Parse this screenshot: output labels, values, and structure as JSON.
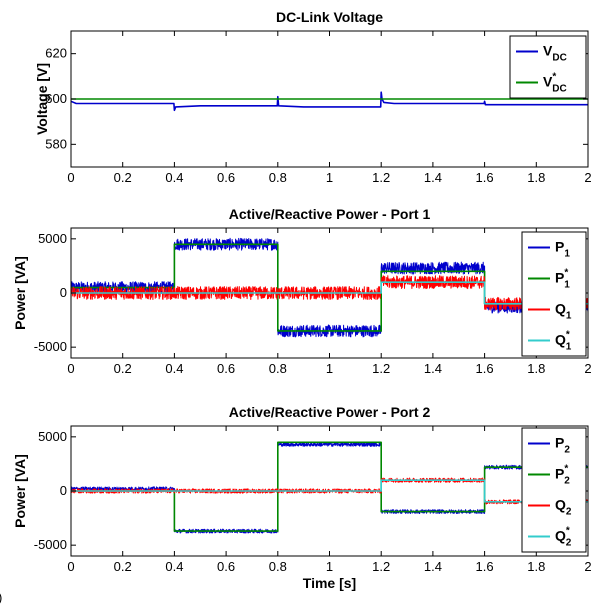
{
  "figure": {
    "panel_tag": ")"
  },
  "colors": {
    "blue": "#0000cc",
    "green": "#008800",
    "red": "#ff0000",
    "cyan": "#33cccc",
    "axis": "#000000"
  },
  "chart_data": [
    {
      "type": "line",
      "title": "DC-Link Voltage",
      "xlabel": "",
      "ylabel": "Voltage [V]",
      "xlim": [
        0,
        2
      ],
      "ylim": [
        570,
        630
      ],
      "xticks": [
        0,
        0.2,
        0.4,
        0.6,
        0.8,
        1,
        1.2,
        1.4,
        1.6,
        1.8,
        2
      ],
      "xtick_labels": [
        "0",
        "0.2",
        "0.4",
        "0.6",
        "0.8",
        "1",
        "1.2",
        "1.4",
        "1.6",
        "1.8",
        "2"
      ],
      "yticks": [
        580,
        600,
        620
      ],
      "ytick_labels": [
        "580",
        "600",
        "620"
      ],
      "grid": false,
      "legend_position": "top-right",
      "series": [
        {
          "name": "VDC",
          "legend": {
            "base": "V",
            "sub": "DC",
            "sup": ""
          },
          "color": "#0000cc",
          "x": [
            0,
            0.02,
            0.1,
            0.2,
            0.3,
            0.398,
            0.4,
            0.405,
            0.5,
            0.6,
            0.7,
            0.798,
            0.8,
            0.803,
            0.9,
            1.0,
            1.1,
            1.198,
            1.2,
            1.203,
            1.21,
            1.25,
            1.3,
            1.4,
            1.5,
            1.598,
            1.6,
            1.603,
            1.7,
            1.8,
            1.9,
            2.0
          ],
          "y": [
            599,
            598,
            598,
            598,
            598,
            598,
            595,
            596.5,
            597,
            597,
            597,
            597,
            601,
            597,
            596.5,
            596.5,
            596.5,
            596.5,
            603,
            600,
            598.5,
            598,
            598,
            598,
            598,
            598,
            599,
            597.5,
            597.5,
            597.5,
            597.5,
            597.5
          ]
        },
        {
          "name": "V*DC",
          "legend": {
            "base": "V",
            "sub": "DC",
            "sup": "*"
          },
          "color": "#008800",
          "x": [
            0,
            2
          ],
          "y": [
            600,
            600
          ]
        }
      ]
    },
    {
      "type": "line",
      "title": "Active/Reactive Power - Port 1",
      "xlabel": "",
      "ylabel": "Power [VA]",
      "xlim": [
        0,
        2
      ],
      "ylim": [
        -6000,
        6000
      ],
      "xticks": [
        0,
        0.2,
        0.4,
        0.6,
        0.8,
        1,
        1.2,
        1.4,
        1.6,
        1.8,
        2
      ],
      "xtick_labels": [
        "0",
        "0.2",
        "0.4",
        "0.6",
        "0.8",
        "1",
        "1.2",
        "1.4",
        "1.6",
        "1.8",
        "2"
      ],
      "yticks": [
        -5000,
        0,
        5000
      ],
      "ytick_labels": [
        "-5000",
        "0",
        "5000"
      ],
      "grid": false,
      "legend_position": "right",
      "series": [
        {
          "name": "P1",
          "legend": {
            "base": "P",
            "sub": "1",
            "sup": ""
          },
          "color": "#0000cc",
          "steps": [
            [
              0,
              0.4,
              500
            ],
            [
              0.4,
              0.8,
              4500
            ],
            [
              0.8,
              1.2,
              -3500
            ],
            [
              1.2,
              1.6,
              2300
            ],
            [
              1.6,
              2.0,
              -1300
            ]
          ],
          "noise": 550
        },
        {
          "name": "P*1",
          "legend": {
            "base": "P",
            "sub": "1",
            "sup": "*"
          },
          "color": "#008800",
          "steps": [
            [
              0,
              0.4,
              500
            ],
            [
              0.4,
              0.8,
              4500
            ],
            [
              0.8,
              1.2,
              -3500
            ],
            [
              1.2,
              1.6,
              2000
            ],
            [
              1.6,
              2.0,
              -1000
            ]
          ],
          "noise": 0
        },
        {
          "name": "Q1",
          "legend": {
            "base": "Q",
            "sub": "1",
            "sup": ""
          },
          "color": "#ff0000",
          "steps": [
            [
              0,
              1.2,
              0
            ],
            [
              1.2,
              1.6,
              1000
            ],
            [
              1.6,
              2.0,
              -1000
            ]
          ],
          "noise": 600
        },
        {
          "name": "Q*1",
          "legend": {
            "base": "Q",
            "sub": "1",
            "sup": "*"
          },
          "color": "#33cccc",
          "steps": [
            [
              0,
              1.2,
              0
            ],
            [
              1.2,
              1.6,
              1000
            ],
            [
              1.6,
              2.0,
              -1000
            ]
          ],
          "noise": 0
        }
      ]
    },
    {
      "type": "line",
      "title": "Active/Reactive Power - Port 2",
      "xlabel": "Time [s]",
      "ylabel": "Power [VA]",
      "xlim": [
        0,
        2
      ],
      "ylim": [
        -6000,
        6000
      ],
      "xticks": [
        0,
        0.2,
        0.4,
        0.6,
        0.8,
        1,
        1.2,
        1.4,
        1.6,
        1.8,
        2
      ],
      "xtick_labels": [
        "0",
        "0.2",
        "0.4",
        "0.6",
        "0.8",
        "1",
        "1.2",
        "1.4",
        "1.6",
        "1.8",
        "2"
      ],
      "yticks": [
        -5000,
        0,
        5000
      ],
      "ytick_labels": [
        "-5000",
        "0",
        "5000"
      ],
      "grid": false,
      "legend_position": "right",
      "series": [
        {
          "name": "P2",
          "legend": {
            "base": "P",
            "sub": "2",
            "sup": ""
          },
          "color": "#0000cc",
          "steps": [
            [
              0,
              0.4,
              200
            ],
            [
              0.4,
              0.8,
              -3700
            ],
            [
              0.8,
              1.2,
              4300
            ],
            [
              1.2,
              1.6,
              -1900
            ],
            [
              1.6,
              2.0,
              2200
            ]
          ],
          "noise": 180
        },
        {
          "name": "P*2",
          "legend": {
            "base": "P",
            "sub": "2",
            "sup": "*"
          },
          "color": "#008800",
          "steps": [
            [
              0,
              0.4,
              0
            ],
            [
              0.4,
              0.8,
              -3700
            ],
            [
              0.8,
              1.2,
              4500
            ],
            [
              1.2,
              1.6,
              -1900
            ],
            [
              1.6,
              2.0,
              2200
            ]
          ],
          "noise": 0
        },
        {
          "name": "Q2",
          "legend": {
            "base": "Q",
            "sub": "2",
            "sup": ""
          },
          "color": "#ff0000",
          "steps": [
            [
              0,
              1.2,
              0
            ],
            [
              1.2,
              1.6,
              1000
            ],
            [
              1.6,
              2.0,
              -1000
            ]
          ],
          "noise": 200
        },
        {
          "name": "Q*2",
          "legend": {
            "base": "Q",
            "sub": "2",
            "sup": "*"
          },
          "color": "#33cccc",
          "steps": [
            [
              0,
              1.2,
              0
            ],
            [
              1.2,
              1.6,
              1000
            ],
            [
              1.6,
              2.0,
              -1000
            ]
          ],
          "noise": 0
        }
      ]
    }
  ]
}
